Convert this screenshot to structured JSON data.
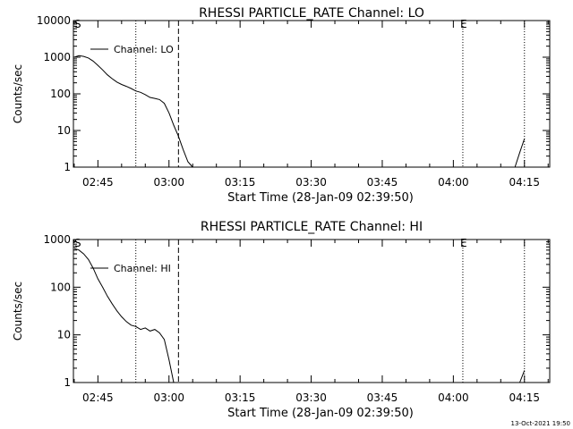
{
  "footer": {
    "timestamp": "13-Oct-2021 19:50"
  },
  "chart_data": [
    {
      "type": "line",
      "title": "RHESSI PARTICLE_RATE Channel: LO",
      "xlabel": "Start Time (28-Jan-09 02:39:50)",
      "ylabel": "Counts/sec",
      "y_scale": "log",
      "ylim": [
        1,
        10000
      ],
      "y_ticks": [
        "1",
        "10",
        "100",
        "1000",
        "10000"
      ],
      "x_ticks": [
        "02:45",
        "03:00",
        "03:15",
        "03:30",
        "03:45",
        "04:00",
        "04:15"
      ],
      "legend": {
        "placement": "top-left",
        "entries": [
          "Channel: LO"
        ]
      },
      "markers": [
        {
          "label": "S",
          "time": "02:40"
        },
        {
          "label": "E",
          "time": "04:02"
        }
      ],
      "vlines": [
        {
          "time": "02:53",
          "style": "dotted"
        },
        {
          "time": "03:02",
          "style": "dashed"
        },
        {
          "time": "04:02",
          "style": "dotted"
        },
        {
          "time": "04:15",
          "style": "dotted"
        }
      ],
      "series": [
        {
          "name": "Channel: LO",
          "segments": [
            {
              "x": [
                "02:40",
                "02:41",
                "02:42",
                "02:43",
                "02:44",
                "02:45",
                "02:46",
                "02:47",
                "02:48",
                "02:49",
                "02:50",
                "02:51",
                "02:52",
                "02:53",
                "02:54",
                "02:55",
                "02:56",
                "02:57",
                "02:58",
                "02:59",
                "03:00",
                "03:01",
                "03:02",
                "03:03",
                "03:04",
                "03:05"
              ],
              "y": [
                1000,
                1100,
                1050,
                950,
                780,
                600,
                450,
                330,
                260,
                210,
                180,
                160,
                140,
                120,
                110,
                95,
                80,
                75,
                70,
                55,
                30,
                14,
                7,
                3,
                1.4,
                1
              ]
            },
            {
              "x": [
                "04:13",
                "04:14",
                "04:15"
              ],
              "y": [
                1,
                2.5,
                6
              ]
            }
          ]
        }
      ]
    },
    {
      "type": "line",
      "title": "RHESSI PARTICLE_RATE Channel: HI",
      "xlabel": "Start Time (28-Jan-09 02:39:50)",
      "ylabel": "Counts/sec",
      "y_scale": "log",
      "ylim": [
        1,
        1000
      ],
      "y_ticks": [
        "1",
        "10",
        "100",
        "1000"
      ],
      "x_ticks": [
        "02:45",
        "03:00",
        "03:15",
        "03:30",
        "03:45",
        "04:00",
        "04:15"
      ],
      "legend": {
        "placement": "top-left",
        "entries": [
          "Channel: HI"
        ]
      },
      "markers": [
        {
          "label": "S",
          "time": "02:40"
        },
        {
          "label": "E",
          "time": "04:02"
        }
      ],
      "vlines": [
        {
          "time": "02:53",
          "style": "dotted"
        },
        {
          "time": "03:02",
          "style": "dashed"
        },
        {
          "time": "04:02",
          "style": "dotted"
        },
        {
          "time": "04:15",
          "style": "dotted"
        }
      ],
      "series": [
        {
          "name": "Channel: HI",
          "segments": [
            {
              "x": [
                "02:40",
                "02:41",
                "02:42",
                "02:43",
                "02:44",
                "02:45",
                "02:46",
                "02:47",
                "02:48",
                "02:49",
                "02:50",
                "02:51",
                "02:52",
                "02:53",
                "02:54",
                "02:55",
                "02:56",
                "02:57",
                "02:58",
                "02:59",
                "03:00",
                "03:01"
              ],
              "y": [
                650,
                600,
                500,
                380,
                250,
                150,
                100,
                65,
                45,
                32,
                24,
                19,
                16,
                15,
                13,
                14,
                12,
                13,
                11,
                8,
                3,
                1
              ]
            },
            {
              "x": [
                "04:14",
                "04:15"
              ],
              "y": [
                1,
                1.8
              ]
            }
          ]
        }
      ]
    }
  ]
}
